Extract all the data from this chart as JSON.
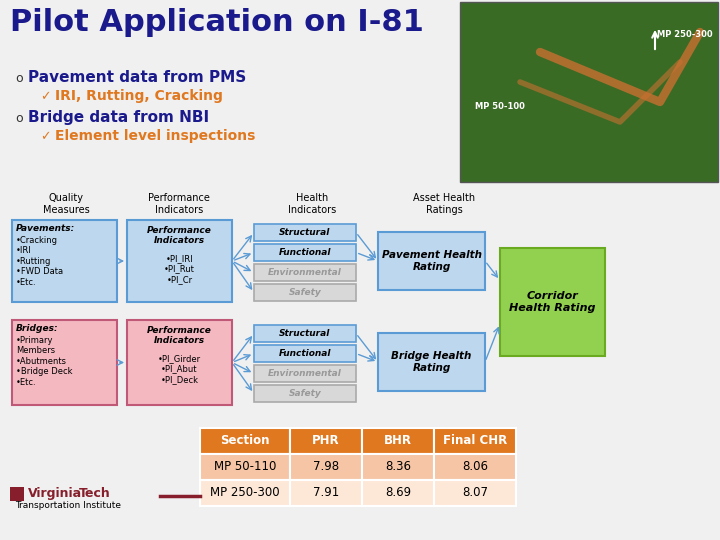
{
  "title": "Pilot Application on I-81",
  "title_color": "#1a1a8c",
  "bg_color": "#f0f0f0",
  "bullet1": "Pavement data from PMS",
  "bullet1_sub": "IRI, Rutting, Cracking",
  "bullet2": "Bridge data from NBI",
  "bullet2_sub": "Element level inspections",
  "col_headers": [
    "Quality\nMeasures",
    "Performance\nIndicators",
    "Health\nIndicators",
    "Asset Health\nRatings"
  ],
  "pave_box1_title": "Pavements:",
  "pave_box1_body": "•Cracking\n•IRI\n•Rutting\n•FWD Data\n•Etc.",
  "pave_box2_title": "Performance\nIndicators",
  "pave_box2_body": "•PI_IRI\n•PI_Rut\n•PI_Cr",
  "pave_hi": [
    "Structural",
    "Functional",
    "Environmental",
    "Safety"
  ],
  "pave_hi_active": [
    true,
    true,
    false,
    false
  ],
  "pave_rating": "Pavement Health\nRating",
  "bridge_box1_title": "Bridges:",
  "bridge_box1_body": "•Primary\nMembers\n•Abutments\n•Bridge Deck\n•Etc.",
  "bridge_box2_title": "Performance\nIndicators",
  "bridge_box2_body": "•PI_Girder\n•PI_Abut\n•PI_Deck",
  "bridge_hi": [
    "Structural",
    "Functional",
    "Environmental",
    "Safety"
  ],
  "bridge_hi_active": [
    true,
    true,
    false,
    false
  ],
  "bridge_rating": "Bridge Health\nRating",
  "corridor": "Corridor\nHealth Rating",
  "table_headers": [
    "Section",
    "PHR",
    "BHR",
    "Final CHR"
  ],
  "table_row1": [
    "MP 50-110",
    "7.98",
    "8.36",
    "8.06"
  ],
  "table_row2": [
    "MP 250-300",
    "7.91",
    "8.69",
    "8.07"
  ],
  "table_header_bg": "#e07820",
  "table_row1_bg": "#f5c5a5",
  "table_row2_bg": "#fde8d8",
  "box_blue": "#5b9bd5",
  "box_blue_light": "#bdd7ee",
  "box_green": "#92d050",
  "box_pink_light": "#f4b8c1",
  "box_pink_border": "#c05878",
  "box_gray": "#d8d8d8",
  "box_gray_text": "#999999",
  "arrow_color": "#5b9bd5",
  "vt_maroon": "#861f2b"
}
